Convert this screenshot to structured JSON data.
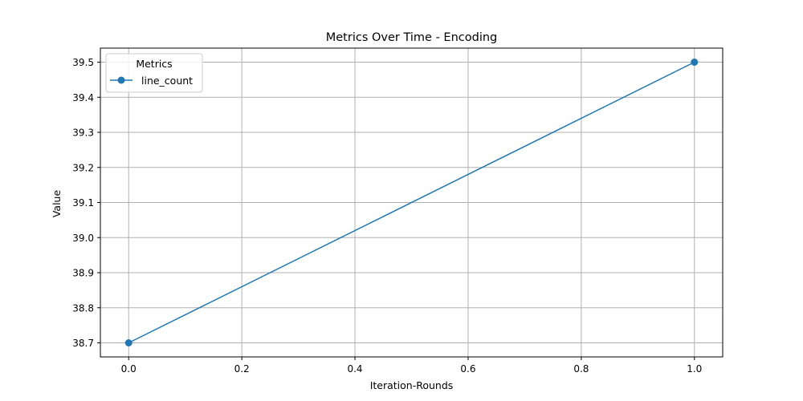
{
  "chart_data": {
    "type": "line",
    "title": "Metrics Over Time - Encoding",
    "xlabel": "Iteration-Rounds",
    "ylabel": "Value",
    "xlim": [
      -0.05,
      1.05
    ],
    "ylim": [
      38.66,
      39.54
    ],
    "x_ticks": [
      0.0,
      0.2,
      0.4,
      0.6,
      0.8,
      1.0
    ],
    "x_tick_labels": [
      "0.0",
      "0.2",
      "0.4",
      "0.6",
      "0.8",
      "1.0"
    ],
    "y_ticks": [
      38.7,
      38.8,
      38.9,
      39.0,
      39.1,
      39.2,
      39.3,
      39.4,
      39.5
    ],
    "y_tick_labels": [
      "38.7",
      "38.8",
      "38.9",
      "39.0",
      "39.1",
      "39.2",
      "39.3",
      "39.4",
      "39.5"
    ],
    "grid": true,
    "legend": {
      "title": "Metrics",
      "position": "top-left"
    },
    "series": [
      {
        "name": "line_count",
        "color": "#1f77b4",
        "marker": "circle",
        "x": [
          0,
          1
        ],
        "y": [
          38.7,
          39.5
        ]
      }
    ]
  }
}
